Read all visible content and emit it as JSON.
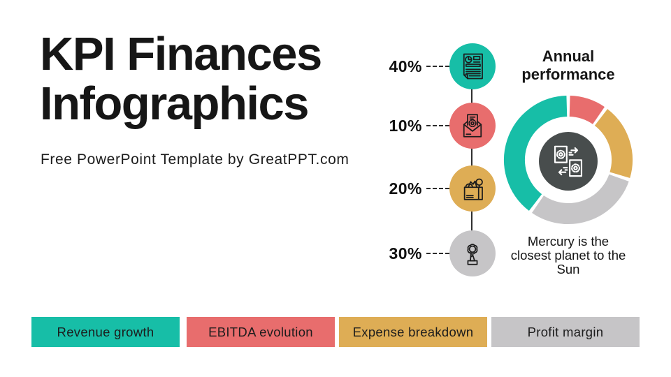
{
  "header": {
    "title": "KPI Finances Infographics",
    "subtitle": "Free PowerPoint Template by GreatPPT.com"
  },
  "kpi_rows": [
    {
      "value": "40%",
      "color": "#17bea7",
      "icon": "report-icon"
    },
    {
      "value": "10%",
      "color": "#e86d6d",
      "icon": "envelope-gear-icon"
    },
    {
      "value": "20%",
      "color": "#dead55",
      "icon": "open-box-icon"
    },
    {
      "value": "30%",
      "color": "#c6c5c7",
      "icon": "award-icon"
    }
  ],
  "donut": {
    "title": "Annual performance",
    "caption": "Mercury is the closest planet to the Sun",
    "center_icon": "document-transfer-icon",
    "center_color": "#484d4d"
  },
  "chart_data": {
    "type": "pie",
    "donut": true,
    "title": "Annual performance",
    "start": "top",
    "direction": "clockwise",
    "labels": [
      "EBITDA evolution",
      "Expense breakdown",
      "Profit margin",
      "Revenue growth"
    ],
    "values": [
      10,
      20,
      30,
      40
    ],
    "colors": [
      "#e86d6d",
      "#dead55",
      "#c6c5c7",
      "#17bea7"
    ],
    "legend_position": "bottom",
    "annotation": "Mercury is the closest planet to the Sun"
  },
  "legend": [
    {
      "label": "Revenue growth",
      "color": "#17bea7"
    },
    {
      "label": "EBITDA evolution",
      "color": "#e86d6d"
    },
    {
      "label": "Expense breakdown",
      "color": "#dead55"
    },
    {
      "label": "Profit margin",
      "color": "#c6c5c7"
    }
  ]
}
